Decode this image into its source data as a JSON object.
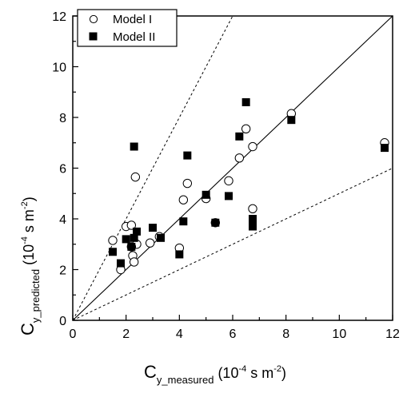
{
  "chart_data": {
    "type": "scatter",
    "xlabel": {
      "main": "C",
      "sub": "y_measured",
      "unit_open": " (10",
      "exp": "-4",
      "unit_mid": " s m",
      "exp2": "-2",
      "unit_close": ")"
    },
    "ylabel": {
      "main": "C",
      "sub": "y_predicted",
      "unit_open": " (10",
      "exp": "-4",
      "unit_mid": " s m",
      "exp2": "-2",
      "unit_close": ")"
    },
    "xlim": [
      0,
      12
    ],
    "ylim": [
      0,
      12
    ],
    "x_ticks": [
      0,
      2,
      4,
      6,
      8,
      10,
      12
    ],
    "y_ticks": [
      0,
      2,
      4,
      6,
      8,
      10,
      12
    ],
    "x_tick_labels": [
      "0",
      "2",
      "4",
      "6",
      "8",
      "10",
      "12"
    ],
    "y_tick_labels": [
      "0",
      "2",
      "4",
      "6",
      "8",
      "10",
      "12"
    ],
    "grid": false,
    "legend_position": "top-left",
    "reference_lines": [
      {
        "style": "solid",
        "slope": 1
      },
      {
        "style": "dashed",
        "slope": 2
      },
      {
        "style": "dashed",
        "slope": 0.5
      }
    ],
    "series": [
      {
        "name": "Model I",
        "marker": "open-circle",
        "points": [
          [
            1.5,
            3.15
          ],
          [
            1.8,
            2.0
          ],
          [
            2.0,
            3.7
          ],
          [
            2.2,
            3.75
          ],
          [
            2.25,
            2.55
          ],
          [
            2.3,
            2.3
          ],
          [
            2.35,
            5.65
          ],
          [
            2.4,
            3.0
          ],
          [
            2.2,
            2.9
          ],
          [
            2.9,
            3.05
          ],
          [
            3.25,
            3.3
          ],
          [
            4.0,
            2.85
          ],
          [
            4.15,
            4.75
          ],
          [
            4.3,
            5.4
          ],
          [
            5.0,
            4.8
          ],
          [
            5.35,
            3.85
          ],
          [
            5.85,
            5.5
          ],
          [
            6.25,
            6.4
          ],
          [
            6.5,
            7.55
          ],
          [
            6.75,
            6.85
          ],
          [
            6.75,
            4.4
          ],
          [
            8.2,
            8.15
          ],
          [
            11.7,
            7.0
          ]
        ]
      },
      {
        "name": "Model II",
        "marker": "filled-square",
        "points": [
          [
            1.5,
            2.7
          ],
          [
            1.8,
            2.25
          ],
          [
            2.0,
            3.2
          ],
          [
            2.2,
            2.9
          ],
          [
            2.3,
            3.25
          ],
          [
            2.4,
            3.5
          ],
          [
            2.3,
            6.85
          ],
          [
            3.0,
            3.65
          ],
          [
            3.3,
            3.25
          ],
          [
            4.0,
            2.6
          ],
          [
            4.15,
            3.9
          ],
          [
            4.3,
            6.5
          ],
          [
            5.0,
            4.95
          ],
          [
            5.35,
            3.85
          ],
          [
            5.85,
            4.9
          ],
          [
            6.25,
            7.25
          ],
          [
            6.5,
            8.6
          ],
          [
            6.75,
            4.0
          ],
          [
            6.75,
            3.7
          ],
          [
            8.2,
            7.9
          ],
          [
            11.7,
            6.8
          ]
        ]
      }
    ]
  }
}
